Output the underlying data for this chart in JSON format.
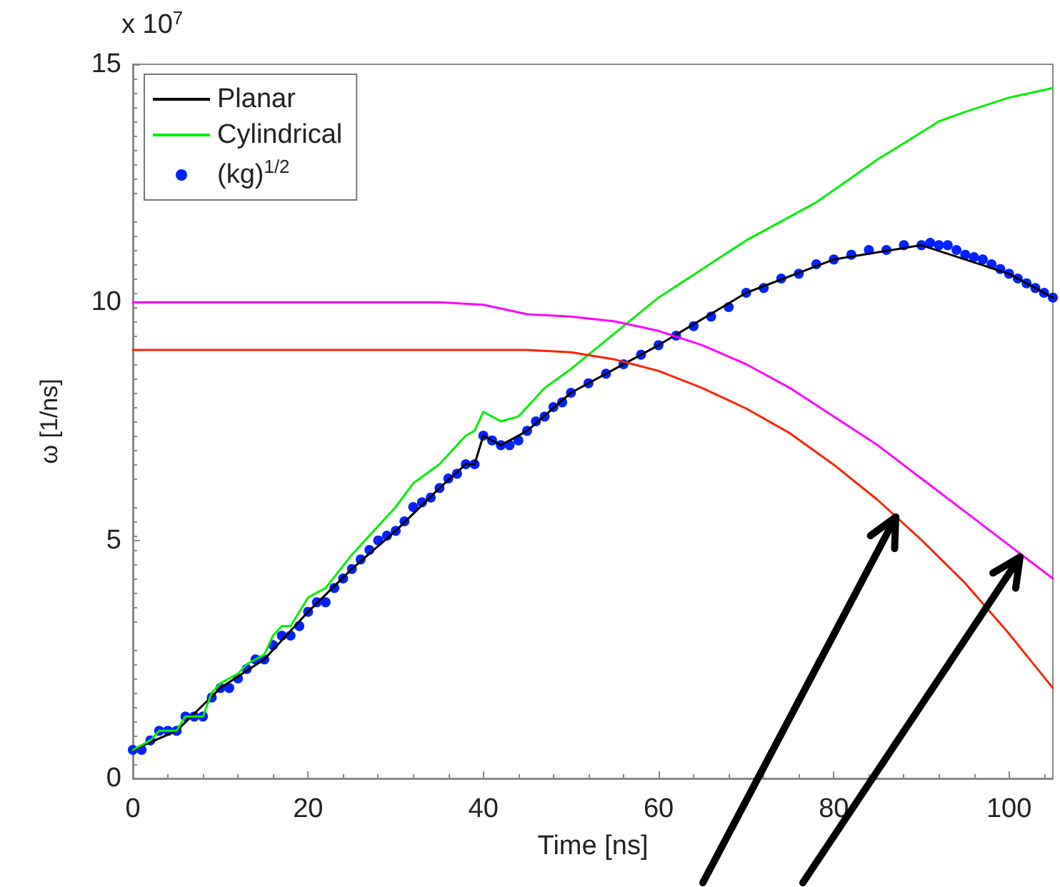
{
  "chart_data": {
    "type": "line",
    "xlabel": "Time [ns]",
    "ylabel": "ω [1/ns]",
    "annotations": [
      "x 10$^{7}$"
    ],
    "xlim": [
      0,
      105
    ],
    "xticks": [
      0,
      20,
      40,
      60,
      80,
      100
    ],
    "ylim": [
      0,
      15
    ],
    "yticks": [
      0,
      5,
      10,
      15
    ],
    "grid": false,
    "legend": "top left",
    "series": [
      {
        "name": "Planar",
        "color": "#000000",
        "x": [
          0,
          5,
          10,
          15,
          20,
          25,
          30,
          35,
          38,
          39,
          40,
          42,
          45,
          50,
          55,
          60,
          70,
          80,
          90,
          100,
          105
        ],
        "values": [
          0.6,
          1.0,
          1.9,
          2.5,
          3.5,
          4.4,
          5.2,
          6.1,
          6.6,
          6.6,
          7.2,
          7.0,
          7.3,
          8.1,
          8.6,
          9.1,
          10.2,
          10.9,
          11.2,
          10.6,
          10.1
        ]
      },
      {
        "name": "Cylindrical",
        "color": "#00ee00",
        "x": [
          0,
          2,
          3,
          5,
          6,
          8,
          9,
          10,
          12,
          13,
          15,
          16,
          17,
          18,
          20,
          22,
          25,
          30,
          32,
          35,
          38,
          39,
          40,
          42,
          44,
          47,
          50,
          56,
          60,
          65,
          70,
          78,
          85,
          92,
          95,
          100,
          105
        ],
        "values": [
          0.6,
          0.8,
          1.0,
          1.0,
          1.3,
          1.3,
          1.8,
          2.0,
          2.2,
          2.4,
          2.6,
          3.0,
          3.2,
          3.2,
          3.8,
          4.0,
          4.7,
          5.7,
          6.2,
          6.6,
          7.2,
          7.3,
          7.7,
          7.5,
          7.6,
          8.2,
          8.6,
          9.5,
          10.1,
          10.7,
          11.3,
          12.1,
          13.0,
          13.8,
          14.0,
          14.3,
          14.5
        ]
      },
      {
        "name": "(kg)$^{1/2}$",
        "type": "scatter",
        "marker": "circle",
        "color": "#0022ff",
        "x": [
          0,
          1,
          2,
          3,
          4,
          5,
          6,
          7,
          8,
          9,
          10,
          11,
          12,
          13,
          14,
          15,
          16,
          17,
          18,
          19,
          20,
          21,
          22,
          23,
          24,
          25,
          26,
          27,
          28,
          29,
          30,
          31,
          32,
          33,
          34,
          35,
          36,
          37,
          38,
          39,
          40,
          41,
          42,
          43,
          44,
          45,
          46,
          47,
          48,
          49,
          50,
          52,
          54,
          56,
          58,
          60,
          62,
          64,
          66,
          68,
          70,
          72,
          74,
          76,
          78,
          80,
          82,
          84,
          86,
          88,
          90,
          91,
          92,
          93,
          94,
          95,
          96,
          97,
          98,
          99,
          100,
          101,
          102,
          103,
          104,
          105
        ],
        "values": [
          0.6,
          0.6,
          0.8,
          1.0,
          1.0,
          1.0,
          1.3,
          1.3,
          1.3,
          1.7,
          1.9,
          1.9,
          2.1,
          2.3,
          2.5,
          2.5,
          2.8,
          3.0,
          3.0,
          3.2,
          3.5,
          3.7,
          3.7,
          4.0,
          4.2,
          4.4,
          4.6,
          4.8,
          5.0,
          5.1,
          5.2,
          5.4,
          5.7,
          5.8,
          5.9,
          6.1,
          6.3,
          6.4,
          6.6,
          6.6,
          7.2,
          7.1,
          7.0,
          7.0,
          7.1,
          7.3,
          7.5,
          7.6,
          7.8,
          7.9,
          8.1,
          8.3,
          8.5,
          8.7,
          8.9,
          9.1,
          9.3,
          9.5,
          9.7,
          9.9,
          10.2,
          10.3,
          10.5,
          10.6,
          10.8,
          10.9,
          11.0,
          11.1,
          11.1,
          11.2,
          11.2,
          11.25,
          11.2,
          11.2,
          11.1,
          11.0,
          10.95,
          10.9,
          10.8,
          10.7,
          10.6,
          10.5,
          10.4,
          10.3,
          10.2,
          10.1
        ]
      },
      {
        "color": "#ff2200",
        "x": [
          0,
          20,
          40,
          45,
          50,
          55,
          60,
          65,
          70,
          75,
          80,
          85,
          90,
          95,
          100,
          105
        ],
        "values": [
          9.0,
          9.0,
          9.0,
          9.0,
          8.95,
          8.8,
          8.56,
          8.2,
          7.77,
          7.25,
          6.59,
          5.85,
          5.01,
          4.1,
          3.04,
          1.9
        ]
      },
      {
        "color": "#ff00ff",
        "x": [
          0,
          20,
          35,
          40,
          45,
          50,
          55,
          60,
          65,
          70,
          75,
          80,
          85,
          90,
          95,
          100,
          105
        ],
        "values": [
          10.0,
          10.0,
          10.0,
          9.95,
          9.75,
          9.7,
          9.6,
          9.4,
          9.1,
          8.7,
          8.2,
          7.6,
          7.0,
          6.3,
          5.6,
          4.9,
          4.2
        ]
      }
    ]
  }
}
